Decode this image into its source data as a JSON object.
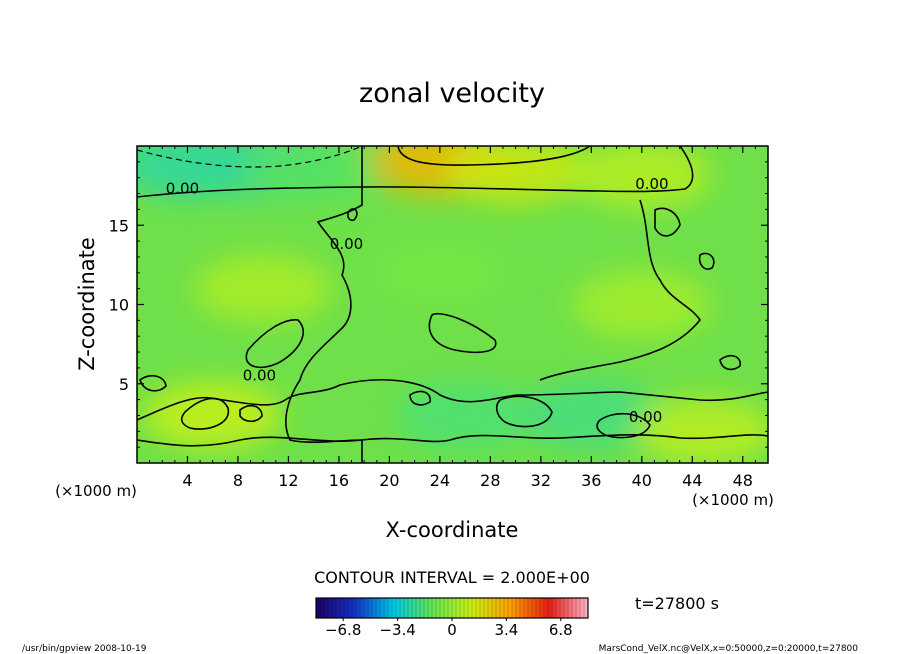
{
  "chart_data": {
    "type": "heatmap",
    "title": "zonal velocity",
    "xlabel": "X-coordinate",
    "ylabel": "Z-coordinate",
    "x_unit": "(×1000 m)",
    "y_unit": "(×1000 m)",
    "xlim": [
      0,
      50
    ],
    "ylim": [
      0,
      20
    ],
    "x_ticks": [
      "4",
      "8",
      "12",
      "16",
      "20",
      "24",
      "28",
      "32",
      "36",
      "40",
      "44",
      "48"
    ],
    "y_ticks": [
      "5",
      "10",
      "15"
    ],
    "x_tick_values": [
      4,
      8,
      12,
      16,
      20,
      24,
      28,
      32,
      36,
      40,
      44,
      48
    ],
    "y_tick_values": [
      5,
      10,
      15
    ],
    "contour_labels": [
      {
        "text": "0.00",
        "x": 3.6,
        "z": 17.0
      },
      {
        "text": "0.00",
        "x": 16.6,
        "z": 13.5
      },
      {
        "text": "0.00",
        "x": 9.7,
        "z": 5.2
      },
      {
        "text": "0.00",
        "x": 40.8,
        "z": 17.3
      },
      {
        "text": "0.00",
        "x": 40.3,
        "z": 2.6
      }
    ],
    "contour_interval": "CONTOUR INTERVAL = 2.000E+00",
    "time_label": "t=27800 s",
    "colorbar": {
      "min": -8.5,
      "max": 8.5,
      "ticks": [
        "−6.8",
        "−3.4",
        "0",
        "3.4",
        "6.8"
      ],
      "tick_values": [
        -6.8,
        -3.4,
        0,
        3.4,
        6.8
      ]
    },
    "field_samples": [
      {
        "x": 4,
        "z": 18.8,
        "value": -2.5
      },
      {
        "x": 10,
        "z": 18.8,
        "value": -2.4
      },
      {
        "x": 14,
        "z": 18.5,
        "value": -1.5
      },
      {
        "x": 24,
        "z": 19.0,
        "value": 3.0
      },
      {
        "x": 30,
        "z": 18.5,
        "value": 1.5
      },
      {
        "x": 40,
        "z": 18.2,
        "value": 0.8
      },
      {
        "x": 10,
        "z": 11.0,
        "value": 0.5
      },
      {
        "x": 24,
        "z": 12.0,
        "value": -0.8
      },
      {
        "x": 40,
        "z": 10.0,
        "value": 0.4
      },
      {
        "x": 6,
        "z": 3.0,
        "value": 1.2
      },
      {
        "x": 26,
        "z": 3.0,
        "value": -1.8
      },
      {
        "x": 36,
        "z": 3.0,
        "value": -2.0
      },
      {
        "x": 45,
        "z": 2.0,
        "value": 0.9
      }
    ],
    "colormap": [
      "#1e0064",
      "#1432c8",
      "#00c8e6",
      "#64e650",
      "#c8f014",
      "#ffa000",
      "#e61e14",
      "#ffb4c8"
    ]
  },
  "footer": {
    "left": "/usr/bin/gpview  2008-10-19",
    "right": "MarsCond_VelX.nc@VelX,x=0:50000,z=0:20000,t=27800"
  }
}
